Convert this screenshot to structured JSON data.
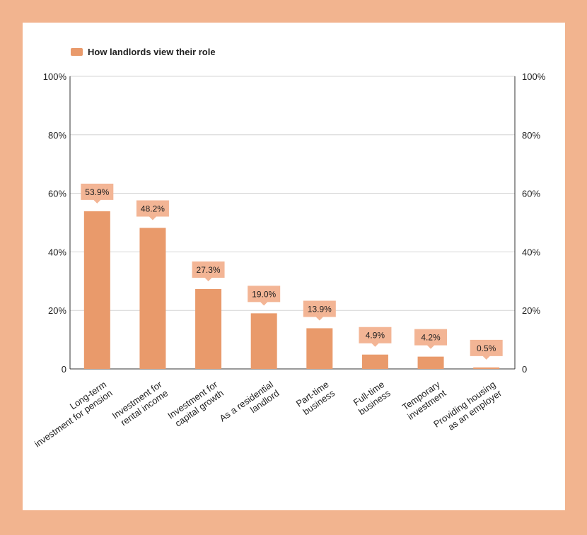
{
  "colors": {
    "background": "#f2b48f",
    "card": "#ffffff",
    "bar": "#e99a6b",
    "label_box": "#f3b595",
    "grid": "#d4d4d4",
    "axis": "#333333",
    "text": "#222222"
  },
  "chart_data": {
    "type": "bar",
    "title": "",
    "xlabel": "",
    "ylabel": "",
    "legend": {
      "label": "How landlords view their role",
      "position": "top-left"
    },
    "categories": [
      [
        "Long-term",
        "investment for pension"
      ],
      [
        "Investment for",
        "rental income"
      ],
      [
        "Investment for",
        "capital growth"
      ],
      [
        "As a residential",
        "landlord"
      ],
      [
        "Part-time",
        "business"
      ],
      [
        "Full-time",
        "business"
      ],
      [
        "Temporary",
        "investment"
      ],
      [
        "Providing housing",
        "as an employer"
      ]
    ],
    "series": [
      {
        "name": "How landlords view their role",
        "values": [
          53.9,
          48.2,
          27.3,
          19.0,
          13.9,
          4.9,
          4.2,
          0.5
        ]
      }
    ],
    "data_labels": [
      "53.9%",
      "48.2%",
      "27.3%",
      "19.0%",
      "13.9%",
      "4.9%",
      "4.2%",
      "0.5%"
    ],
    "ylim": [
      0,
      100
    ],
    "yticks": [
      0,
      20,
      40,
      60,
      80,
      100
    ],
    "ytick_labels": [
      "0",
      "20%",
      "40%",
      "60%",
      "80%",
      "100%"
    ],
    "grid": true,
    "secondary_axis": true
  }
}
